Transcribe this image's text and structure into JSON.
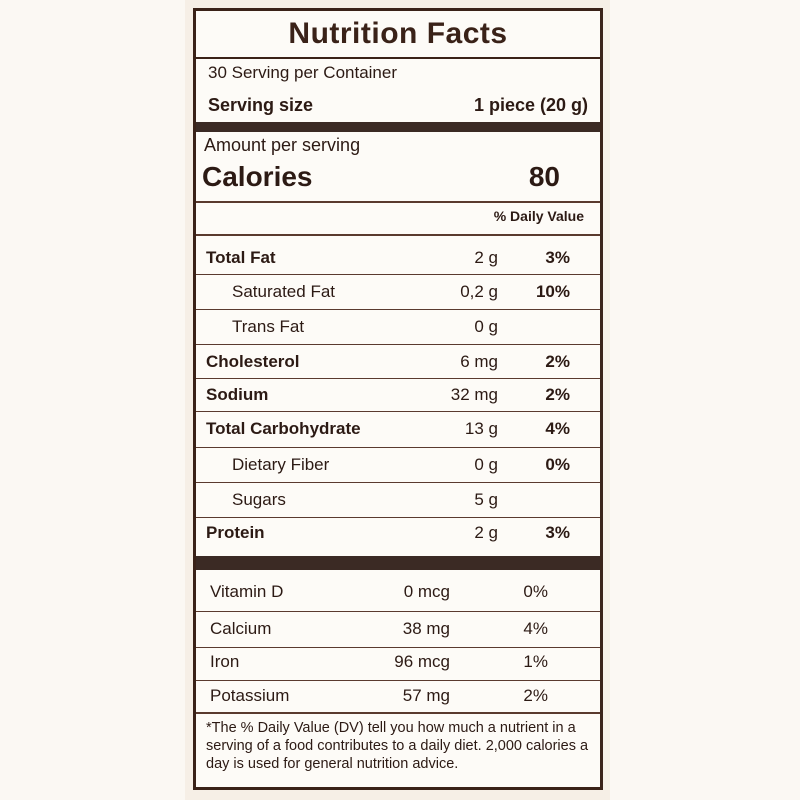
{
  "title": "Nutrition Facts",
  "servings_per_container": "30 Serving per Container",
  "serving_size": {
    "label": "Serving size",
    "value": "1 piece (20 g)"
  },
  "amount_per_serving": "Amount per serving",
  "calories": {
    "label": "Calories",
    "value": "80"
  },
  "daily_value_header": "% Daily Value",
  "nutrients": [
    {
      "name": "Total Fat",
      "amount": "2 g",
      "dv": "3%"
    },
    {
      "name": "Saturated Fat",
      "amount": "0,2 g",
      "dv": "10%"
    },
    {
      "name": "Trans Fat",
      "amount": "0 g",
      "dv": ""
    },
    {
      "name": "Cholesterol",
      "amount": "6 mg",
      "dv": "2%"
    },
    {
      "name": "Sodium",
      "amount": "32 mg",
      "dv": "2%"
    },
    {
      "name": "Total Carbohydrate",
      "amount": "13 g",
      "dv": "4%"
    },
    {
      "name": "Dietary Fiber",
      "amount": "0 g",
      "dv": "0%"
    },
    {
      "name": "Sugars",
      "amount": "5 g",
      "dv": ""
    },
    {
      "name": "Protein",
      "amount": "2 g",
      "dv": "3%"
    }
  ],
  "vitamins": [
    {
      "name": "Vitamin D",
      "amount": "0 mcg",
      "dv": "0%"
    },
    {
      "name": "Calcium",
      "amount": "38 mg",
      "dv": "4%"
    },
    {
      "name": "Iron",
      "amount": "96 mcg",
      "dv": "1%"
    },
    {
      "name": "Potassium",
      "amount": "57 mg",
      "dv": "2%"
    }
  ],
  "footnote": "*The % Daily Value (DV) tell you how much a nutrient in a serving of a food contributes to a daily diet. 2,000 calories a day is used for general nutrition advice."
}
